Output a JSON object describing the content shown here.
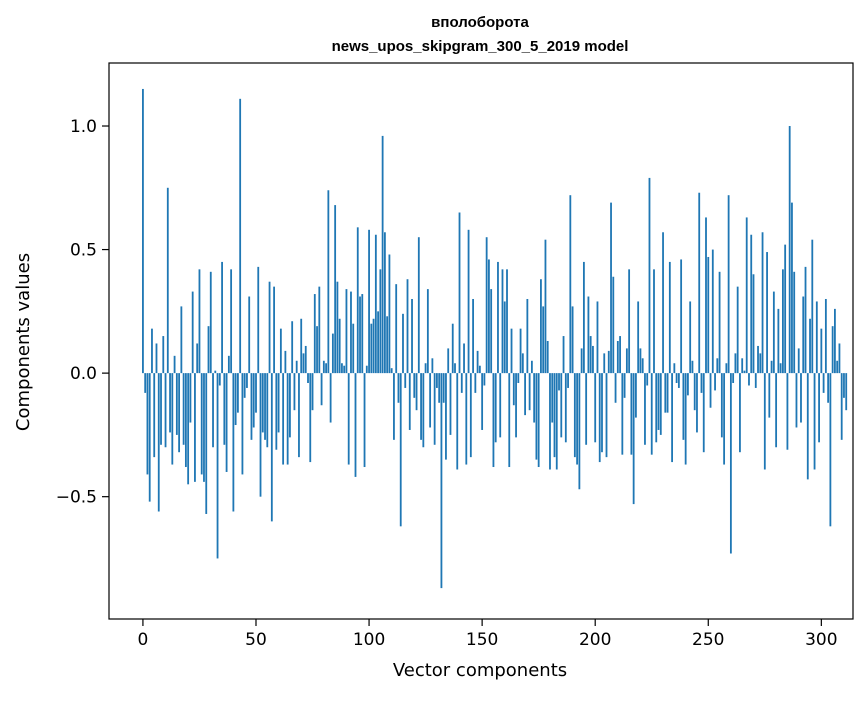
{
  "chart_data": {
    "type": "bar",
    "title": "вполоборота",
    "subtitle": "news_upos_skipgram_300_5_2019 model",
    "xlabel": "Vector components",
    "ylabel": "Components values",
    "xlim": [
      -15,
      314
    ],
    "ylim": [
      -0.995,
      1.255
    ],
    "xticks": [
      0,
      50,
      100,
      150,
      200,
      250,
      300
    ],
    "yticks": [
      -0.5,
      0.0,
      0.5,
      1.0
    ],
    "ytick_labels": [
      "−0.5",
      "0.0",
      "0.5",
      "1.0"
    ],
    "bar_color": "#1f77b4",
    "grid": false,
    "values": [
      1.15,
      -0.08,
      -0.41,
      -0.52,
      0.18,
      -0.34,
      0.12,
      -0.56,
      -0.29,
      0.15,
      -0.3,
      0.75,
      -0.24,
      -0.37,
      0.07,
      -0.25,
      -0.32,
      0.27,
      -0.29,
      -0.38,
      -0.45,
      -0.2,
      0.33,
      -0.44,
      0.12,
      0.42,
      -0.41,
      -0.44,
      -0.57,
      0.19,
      0.41,
      -0.3,
      0.01,
      -0.75,
      -0.05,
      0.45,
      -0.29,
      -0.4,
      0.07,
      0.42,
      -0.56,
      -0.21,
      -0.16,
      1.11,
      -0.41,
      -0.1,
      -0.06,
      0.31,
      -0.27,
      -0.22,
      -0.16,
      0.43,
      -0.5,
      -0.24,
      -0.27,
      -0.3,
      0.37,
      -0.6,
      0.35,
      -0.31,
      -0.24,
      0.18,
      -0.37,
      0.09,
      -0.37,
      -0.26,
      0.21,
      -0.15,
      0.05,
      -0.34,
      0.22,
      0.08,
      0.11,
      -0.04,
      -0.36,
      -0.15,
      0.32,
      0.19,
      0.35,
      -0.13,
      0.05,
      0.04,
      0.74,
      -0.2,
      0.16,
      0.68,
      0.37,
      0.22,
      0.04,
      0.03,
      0.34,
      -0.37,
      0.33,
      0.2,
      -0.42,
      0.59,
      0.31,
      0.32,
      -0.38,
      0.03,
      0.58,
      0.2,
      0.22,
      0.56,
      0.25,
      0.42,
      0.96,
      0.57,
      0.23,
      0.48,
      0.02,
      -0.27,
      0.36,
      -0.12,
      -0.62,
      0.24,
      -0.06,
      0.38,
      -0.23,
      0.3,
      -0.1,
      -0.15,
      0.55,
      -0.27,
      -0.3,
      0.04,
      0.34,
      -0.22,
      0.06,
      -0.29,
      -0.06,
      -0.12,
      -0.87,
      -0.12,
      -0.35,
      0.1,
      -0.25,
      0.2,
      0.04,
      -0.39,
      0.65,
      -0.08,
      0.12,
      -0.37,
      0.58,
      -0.34,
      0.3,
      -0.08,
      0.09,
      0.03,
      -0.23,
      -0.05,
      0.55,
      0.46,
      0.34,
      -0.38,
      -0.28,
      0.45,
      -0.26,
      0.42,
      0.29,
      0.42,
      -0.38,
      0.18,
      -0.13,
      -0.26,
      -0.04,
      0.18,
      0.08,
      -0.17,
      0.3,
      -0.15,
      0.05,
      -0.2,
      -0.35,
      -0.38,
      0.38,
      0.27,
      0.54,
      0.13,
      -0.39,
      -0.2,
      -0.34,
      -0.39,
      -0.07,
      -0.26,
      0.15,
      -0.28,
      -0.06,
      0.72,
      0.27,
      -0.34,
      -0.37,
      -0.47,
      0.1,
      0.45,
      -0.29,
      0.31,
      0.15,
      0.11,
      -0.28,
      0.29,
      -0.36,
      -0.32,
      0.08,
      -0.34,
      0.09,
      0.69,
      0.39,
      -0.12,
      0.13,
      0.15,
      -0.33,
      -0.1,
      0.1,
      0.42,
      -0.33,
      -0.53,
      -0.18,
      0.29,
      0.1,
      0.06,
      -0.29,
      -0.05,
      0.79,
      -0.33,
      0.42,
      -0.28,
      -0.23,
      -0.25,
      0.57,
      -0.16,
      -0.16,
      0.45,
      -0.36,
      0.04,
      -0.04,
      -0.06,
      0.46,
      -0.27,
      -0.37,
      -0.09,
      0.29,
      0.05,
      -0.15,
      -0.24,
      0.73,
      -0.08,
      -0.32,
      0.63,
      0.47,
      -0.14,
      0.5,
      -0.07,
      0.06,
      0.41,
      -0.26,
      -0.37,
      0.04,
      0.72,
      -0.73,
      -0.04,
      0.08,
      0.35,
      -0.32,
      0.06,
      0.01,
      0.63,
      -0.05,
      0.56,
      0.4,
      -0.06,
      0.11,
      0.08,
      0.57,
      -0.39,
      0.49,
      -0.18,
      0.05,
      0.33,
      -0.3,
      0.26,
      0.04,
      0.42,
      0.52,
      -0.31,
      1.0,
      0.69,
      0.41,
      -0.22,
      0.1,
      -0.2,
      0.31,
      0.43,
      -0.43,
      0.22,
      0.54,
      -0.39,
      0.29,
      -0.28,
      0.18,
      -0.08,
      0.3,
      -0.12,
      -0.62,
      0.19,
      0.26,
      0.05,
      0.12,
      -0.27,
      -0.1,
      -0.15
    ]
  }
}
